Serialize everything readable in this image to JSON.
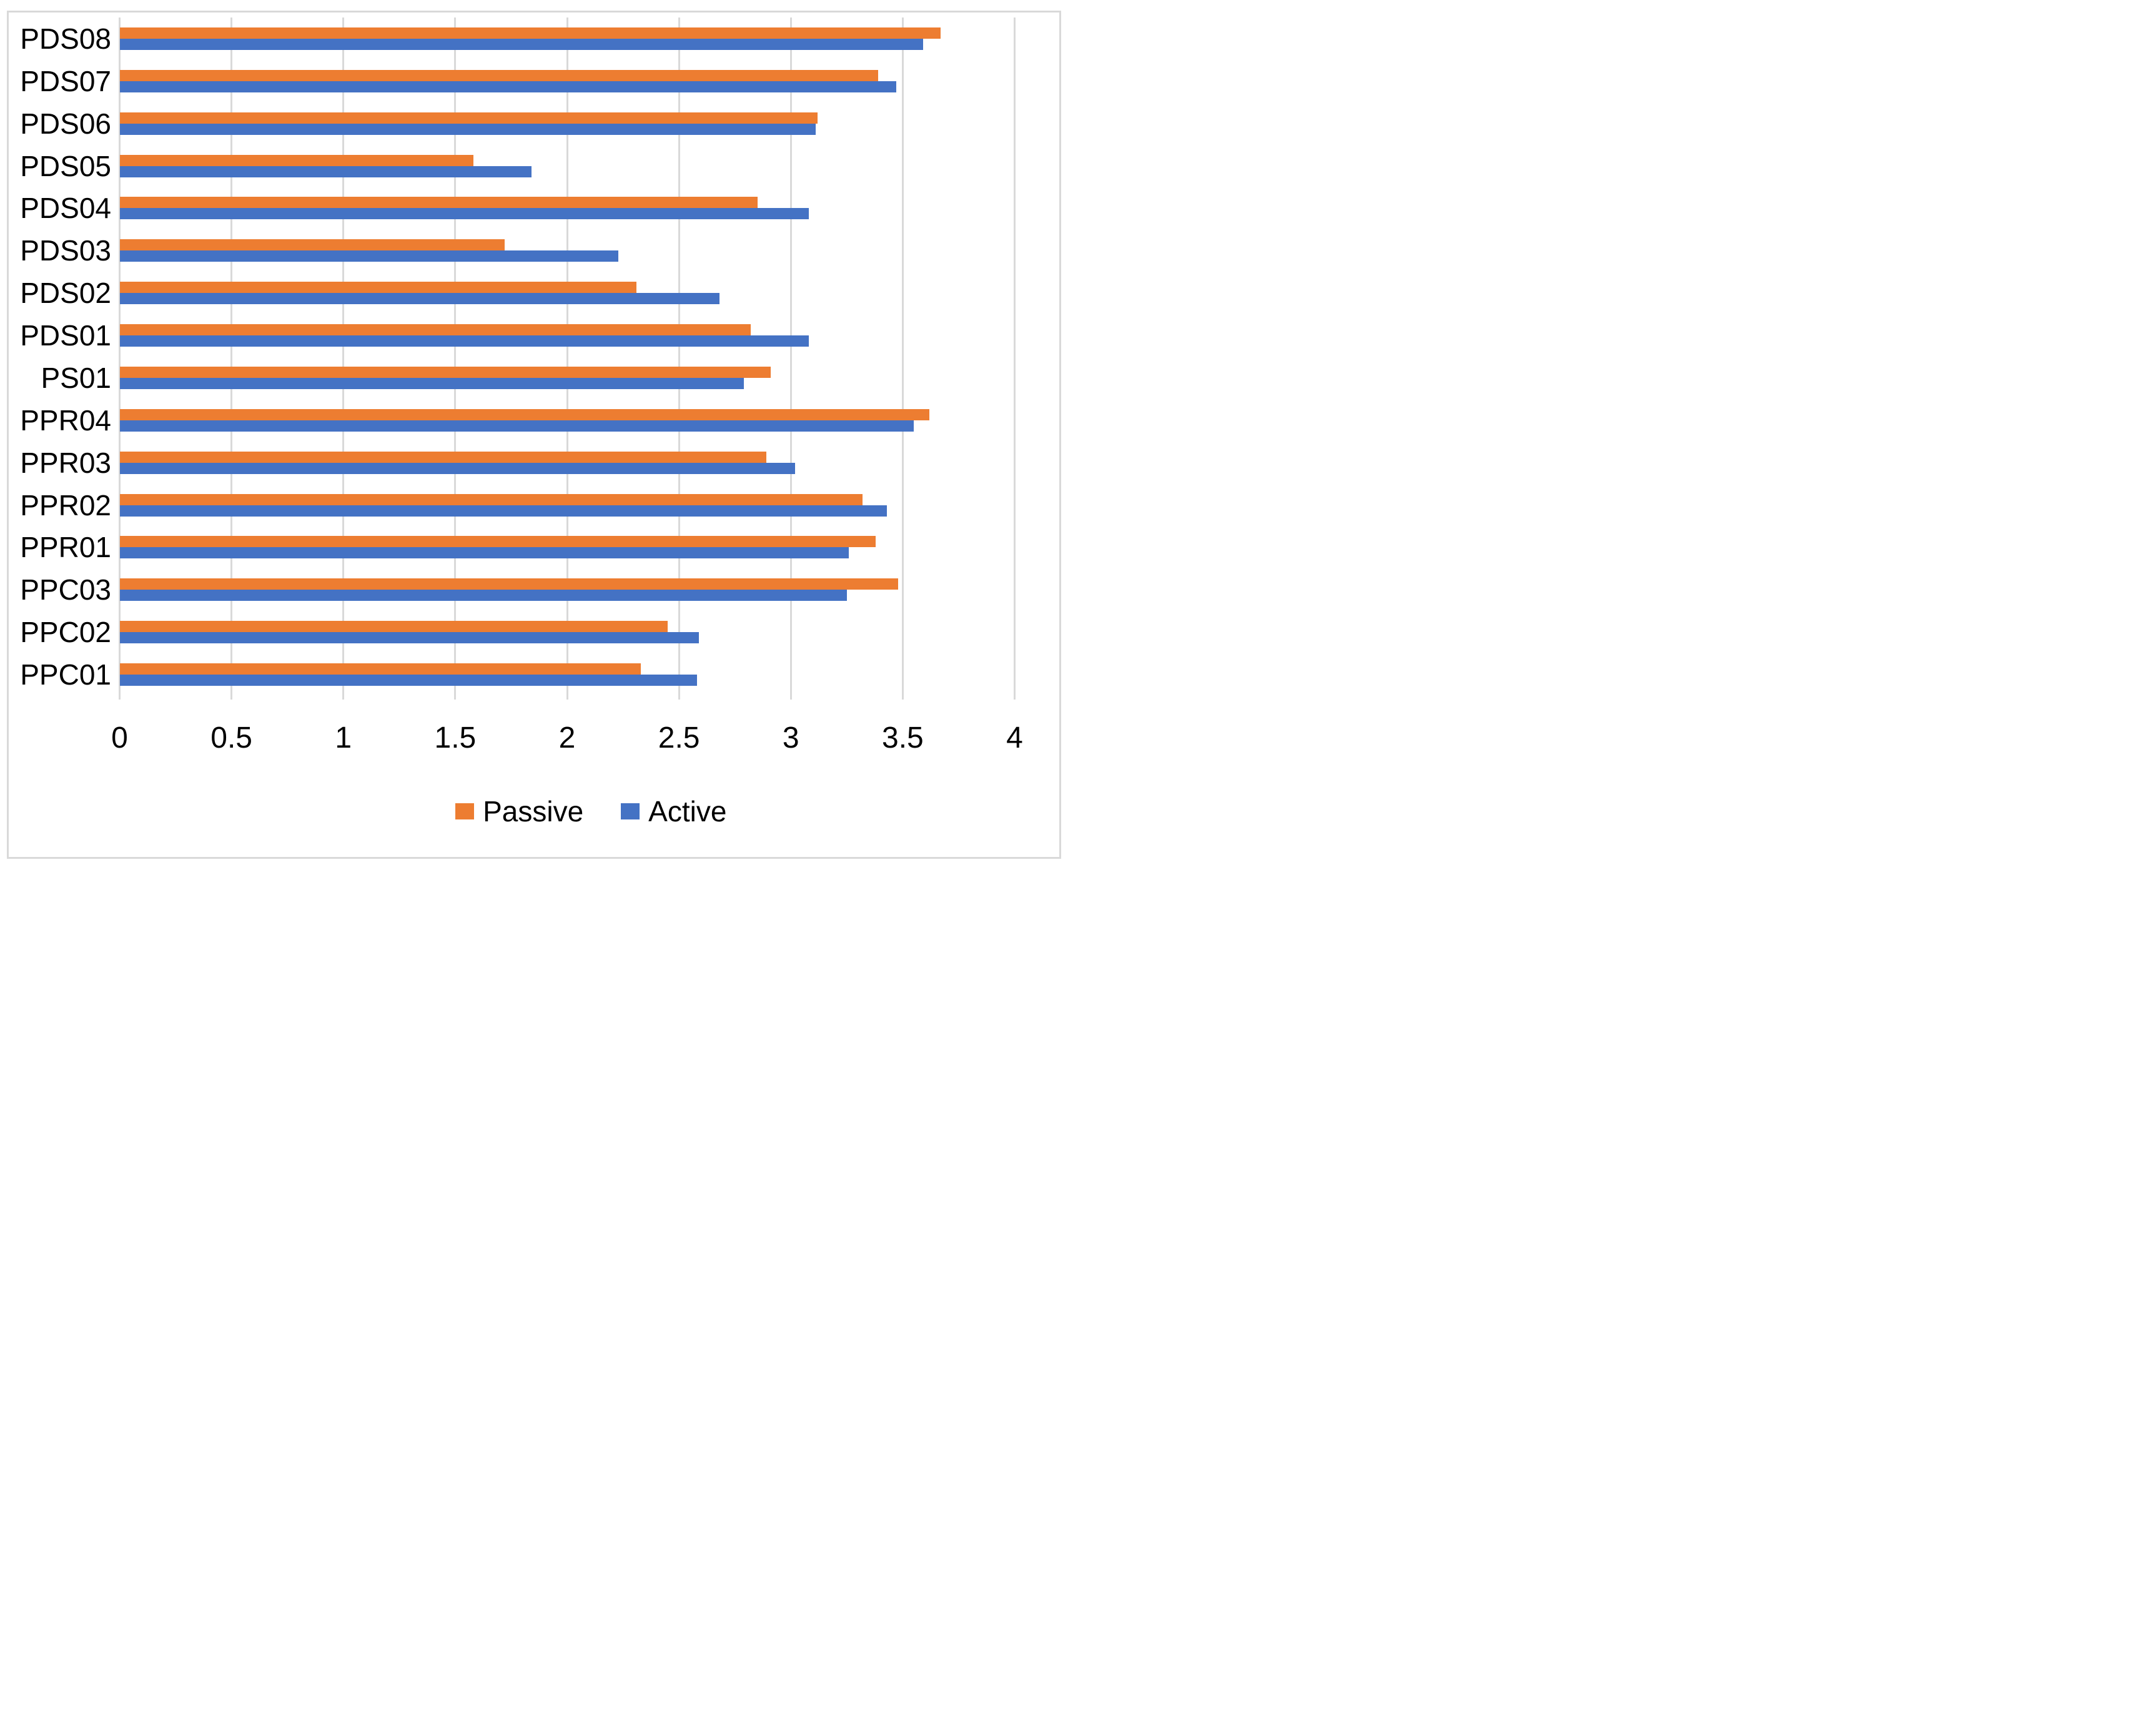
{
  "figure": {
    "background": "#ffffff",
    "border_color": "#d9d9d9"
  },
  "chart_data": {
    "type": "bar",
    "orientation": "horizontal",
    "title": "",
    "xlabel": "",
    "ylabel": "",
    "categories": [
      "PDS08",
      "PDS07",
      "PDS06",
      "PDS05",
      "PDS04",
      "PDS03",
      "PDS02",
      "PDS01",
      "PS01",
      "PPR04",
      "PPR03",
      "PPR02",
      "PPR01",
      "PPC03",
      "PPC02",
      "PPC01"
    ],
    "series": [
      {
        "name": "Passive",
        "color": "#ED7D31",
        "values": [
          3.67,
          3.39,
          3.12,
          1.58,
          2.85,
          1.72,
          2.31,
          2.82,
          2.91,
          3.62,
          2.89,
          3.32,
          3.38,
          3.48,
          2.45,
          2.33
        ]
      },
      {
        "name": "Active",
        "color": "#4472C4",
        "values": [
          3.59,
          3.47,
          3.11,
          1.84,
          3.08,
          2.23,
          2.68,
          3.08,
          2.79,
          3.55,
          3.02,
          3.43,
          3.26,
          3.25,
          2.59,
          2.58
        ]
      }
    ],
    "xlim": [
      0,
      4
    ],
    "xticks": [
      0,
      0.5,
      1,
      1.5,
      2,
      2.5,
      3,
      3.5,
      4
    ],
    "xtick_labels": [
      "0",
      "0.5",
      "1",
      "1.5",
      "2",
      "2.5",
      "3",
      "3.5",
      "4"
    ],
    "grid": true,
    "gridline_color": "#d9d9d9",
    "text_color": "#000000",
    "legend": {
      "position": "bottom",
      "entries": [
        "Passive",
        "Active"
      ]
    }
  }
}
